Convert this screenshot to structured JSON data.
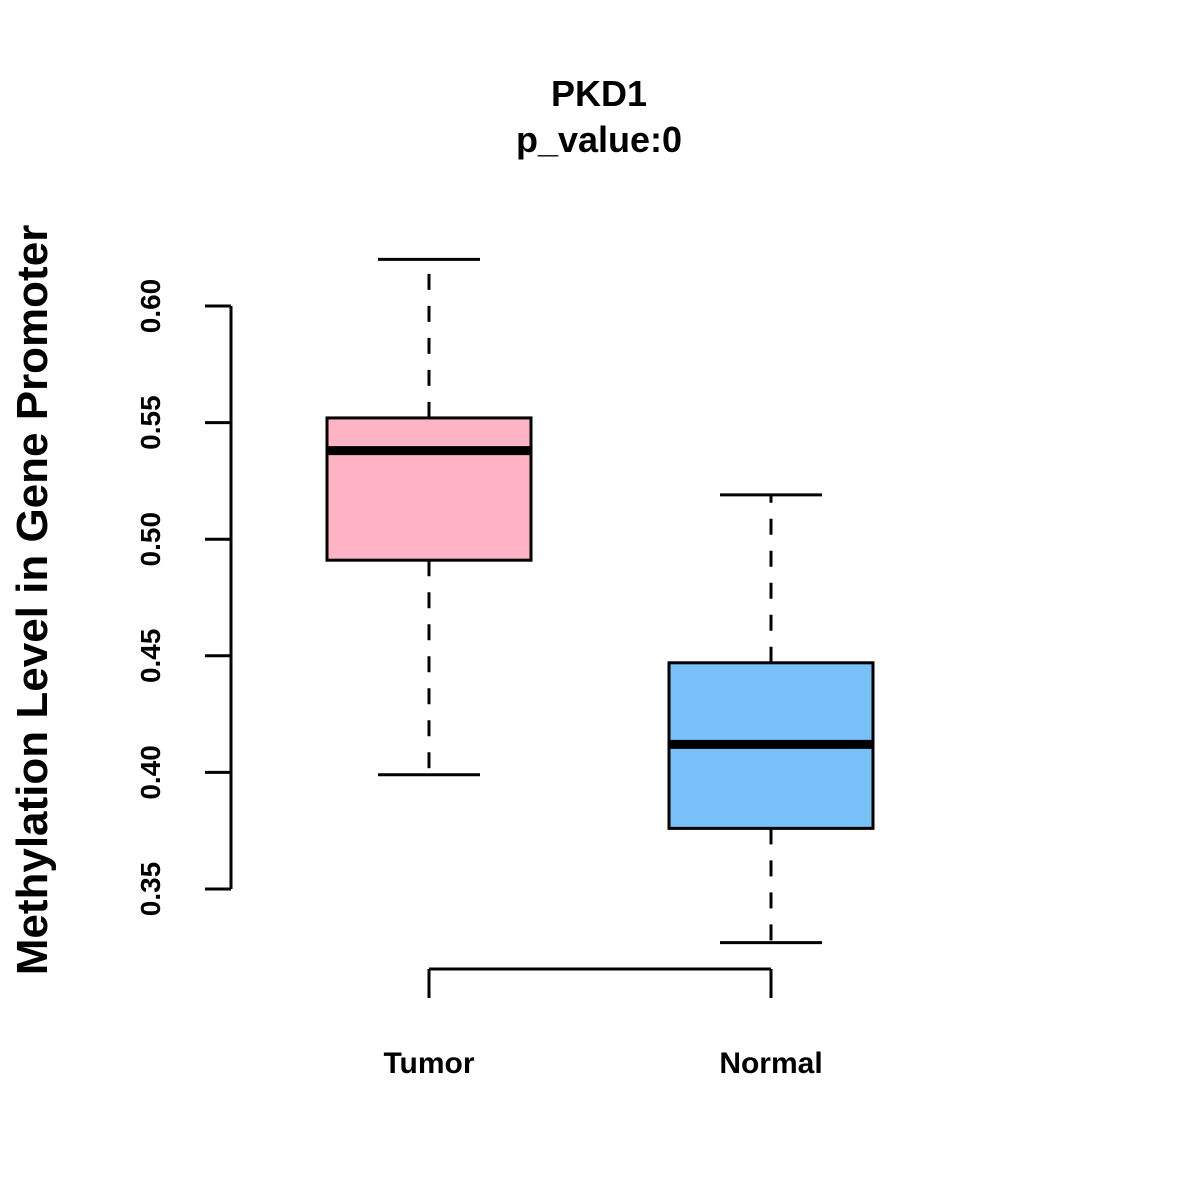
{
  "chart_data": {
    "type": "boxplot",
    "title": "PKD1",
    "subtitle": "p_value:0",
    "xlabel": "",
    "ylabel": "Methylation Level in Gene Promoter",
    "ylim": [
      0.35,
      0.6
    ],
    "yticks": [
      0.35,
      0.4,
      0.45,
      0.5,
      0.55,
      0.6
    ],
    "ytick_labels": [
      "0.35",
      "0.40",
      "0.45",
      "0.50",
      "0.55",
      "0.60"
    ],
    "categories": [
      "Tumor",
      "Normal"
    ],
    "series": [
      {
        "name": "Tumor",
        "color": "#FFB3C5",
        "whisker_low": 0.399,
        "q1": 0.491,
        "median": 0.538,
        "q3": 0.552,
        "whisker_high": 0.62
      },
      {
        "name": "Normal",
        "color": "#78C0F8",
        "whisker_low": 0.327,
        "q1": 0.376,
        "median": 0.412,
        "q3": 0.447,
        "whisker_high": 0.519
      }
    ],
    "grid": false
  }
}
